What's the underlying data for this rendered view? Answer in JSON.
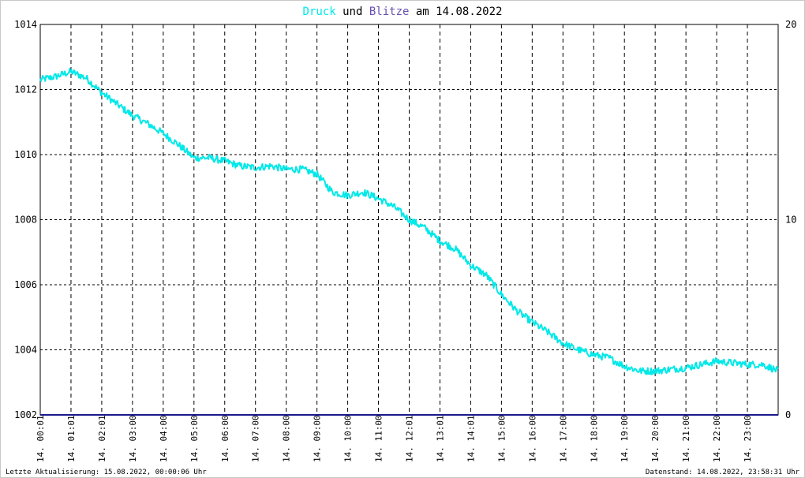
{
  "title": {
    "series1_word": "Druck",
    "connector1": "und",
    "series2_word": "Blitze",
    "connector2": "am",
    "date": "14.08.2022"
  },
  "colors": {
    "druck": "#00e8e8",
    "blitze": "#6a4fb0",
    "title_text": "#000000",
    "grid": "#000000",
    "baseline": "#1a1a8c"
  },
  "footer": {
    "left": "Letzte Aktualisierung: 15.08.2022, 00:00:06 Uhr",
    "right": "Datenstand: 14.08.2022, 23:58:31 Uhr"
  },
  "chart_data": {
    "type": "line",
    "title": "Druck und Blitze am 14.08.2022",
    "xlabel": "",
    "ylabel": "",
    "grid": true,
    "legend": "none",
    "xlim": [
      0,
      24
    ],
    "ylim_left": [
      1002,
      1014
    ],
    "ylim_right": [
      0,
      20
    ],
    "y_ticks_left": [
      "1014",
      "1012",
      "1010",
      "1008",
      "1006",
      "1004",
      "1002"
    ],
    "y_ticks_right": [
      "20",
      "10",
      "0"
    ],
    "x_tick_labels": [
      "14. 00:01",
      "14. 01:01",
      "14. 02:01",
      "14. 03:00",
      "14. 04:00",
      "14. 05:00",
      "14. 06:00",
      "14. 07:00",
      "14. 08:00",
      "14. 09:00",
      "14. 10:00",
      "14. 11:00",
      "14. 12:01",
      "14. 13:01",
      "14. 14:01",
      "14. 15:00",
      "14. 16:00",
      "14. 17:00",
      "14. 18:00",
      "14. 19:00",
      "14. 20:00",
      "14. 21:00",
      "14. 22:00",
      "14. 23:00"
    ],
    "series": [
      {
        "name": "Druck",
        "axis": "left",
        "x": [
          0,
          0.5,
          1,
          1.5,
          2,
          2.5,
          3,
          3.5,
          4,
          4.5,
          5,
          5.5,
          6,
          6.5,
          7,
          7.5,
          8,
          8.5,
          9,
          9.5,
          10,
          10.5,
          11,
          11.5,
          12,
          12.5,
          13,
          13.5,
          14,
          14.5,
          15,
          15.5,
          16,
          16.5,
          17,
          17.5,
          18,
          18.5,
          19,
          19.5,
          20,
          20.5,
          21,
          21.5,
          22,
          22.5,
          23,
          23.5,
          24
        ],
        "values": [
          1012.3,
          1012.4,
          1012.55,
          1012.35,
          1011.9,
          1011.55,
          1011.2,
          1010.95,
          1010.65,
          1010.3,
          1009.9,
          1009.9,
          1009.8,
          1009.65,
          1009.6,
          1009.65,
          1009.55,
          1009.55,
          1009.4,
          1008.85,
          1008.75,
          1008.85,
          1008.65,
          1008.4,
          1008.0,
          1007.75,
          1007.35,
          1007.1,
          1006.6,
          1006.3,
          1005.7,
          1005.2,
          1004.85,
          1004.55,
          1004.2,
          1004.0,
          1003.85,
          1003.75,
          1003.5,
          1003.35,
          1003.35,
          1003.4,
          1003.45,
          1003.55,
          1003.65,
          1003.6,
          1003.55,
          1003.55,
          1003.35
        ]
      },
      {
        "name": "Blitze",
        "axis": "right",
        "x": [
          0,
          24
        ],
        "values": [
          0,
          0
        ]
      }
    ]
  }
}
